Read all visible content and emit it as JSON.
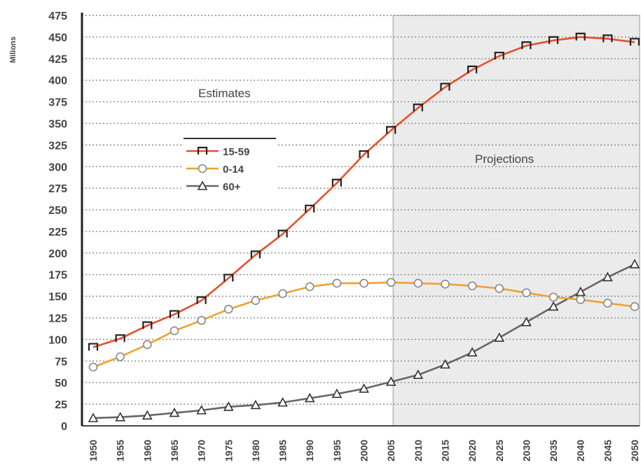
{
  "chart_data": {
    "type": "line",
    "ylabel": "Milions",
    "xlabel": "",
    "ylim": [
      0,
      475
    ],
    "yticks": [
      0,
      25,
      50,
      75,
      100,
      125,
      150,
      175,
      200,
      225,
      250,
      275,
      300,
      325,
      350,
      375,
      400,
      425,
      450,
      475
    ],
    "x": [
      1950,
      1955,
      1960,
      1965,
      1970,
      1975,
      1980,
      1985,
      1990,
      1995,
      2000,
      2005,
      2010,
      2015,
      2020,
      2025,
      2030,
      2035,
      2040,
      2045,
      2050
    ],
    "grid": "horizontal dotted",
    "legend_position": "upper-left",
    "annotations": {
      "estimates": "Estimates",
      "projections": "Projections",
      "projection_start": 2005
    },
    "series": [
      {
        "name": "15-59",
        "color": "#e8502a",
        "marker": "square",
        "values": [
          91,
          101,
          116,
          129,
          145,
          171,
          198,
          222,
          251,
          281,
          314,
          342,
          368,
          392,
          412,
          428,
          440,
          446,
          450,
          448,
          444
        ]
      },
      {
        "name": "0-14",
        "color": "#f0a030",
        "marker": "circle",
        "values": [
          68,
          80,
          94,
          110,
          122,
          135,
          145,
          153,
          161,
          165,
          165,
          166,
          165,
          164,
          162,
          159,
          154,
          149,
          146,
          142,
          138
        ]
      },
      {
        "name": "60+",
        "color": "#666666",
        "marker": "triangle",
        "values": [
          9,
          10,
          12,
          15,
          18,
          22,
          24,
          27,
          32,
          37,
          43,
          51,
          59,
          71,
          85,
          102,
          120,
          138,
          155,
          172,
          187
        ]
      }
    ]
  }
}
